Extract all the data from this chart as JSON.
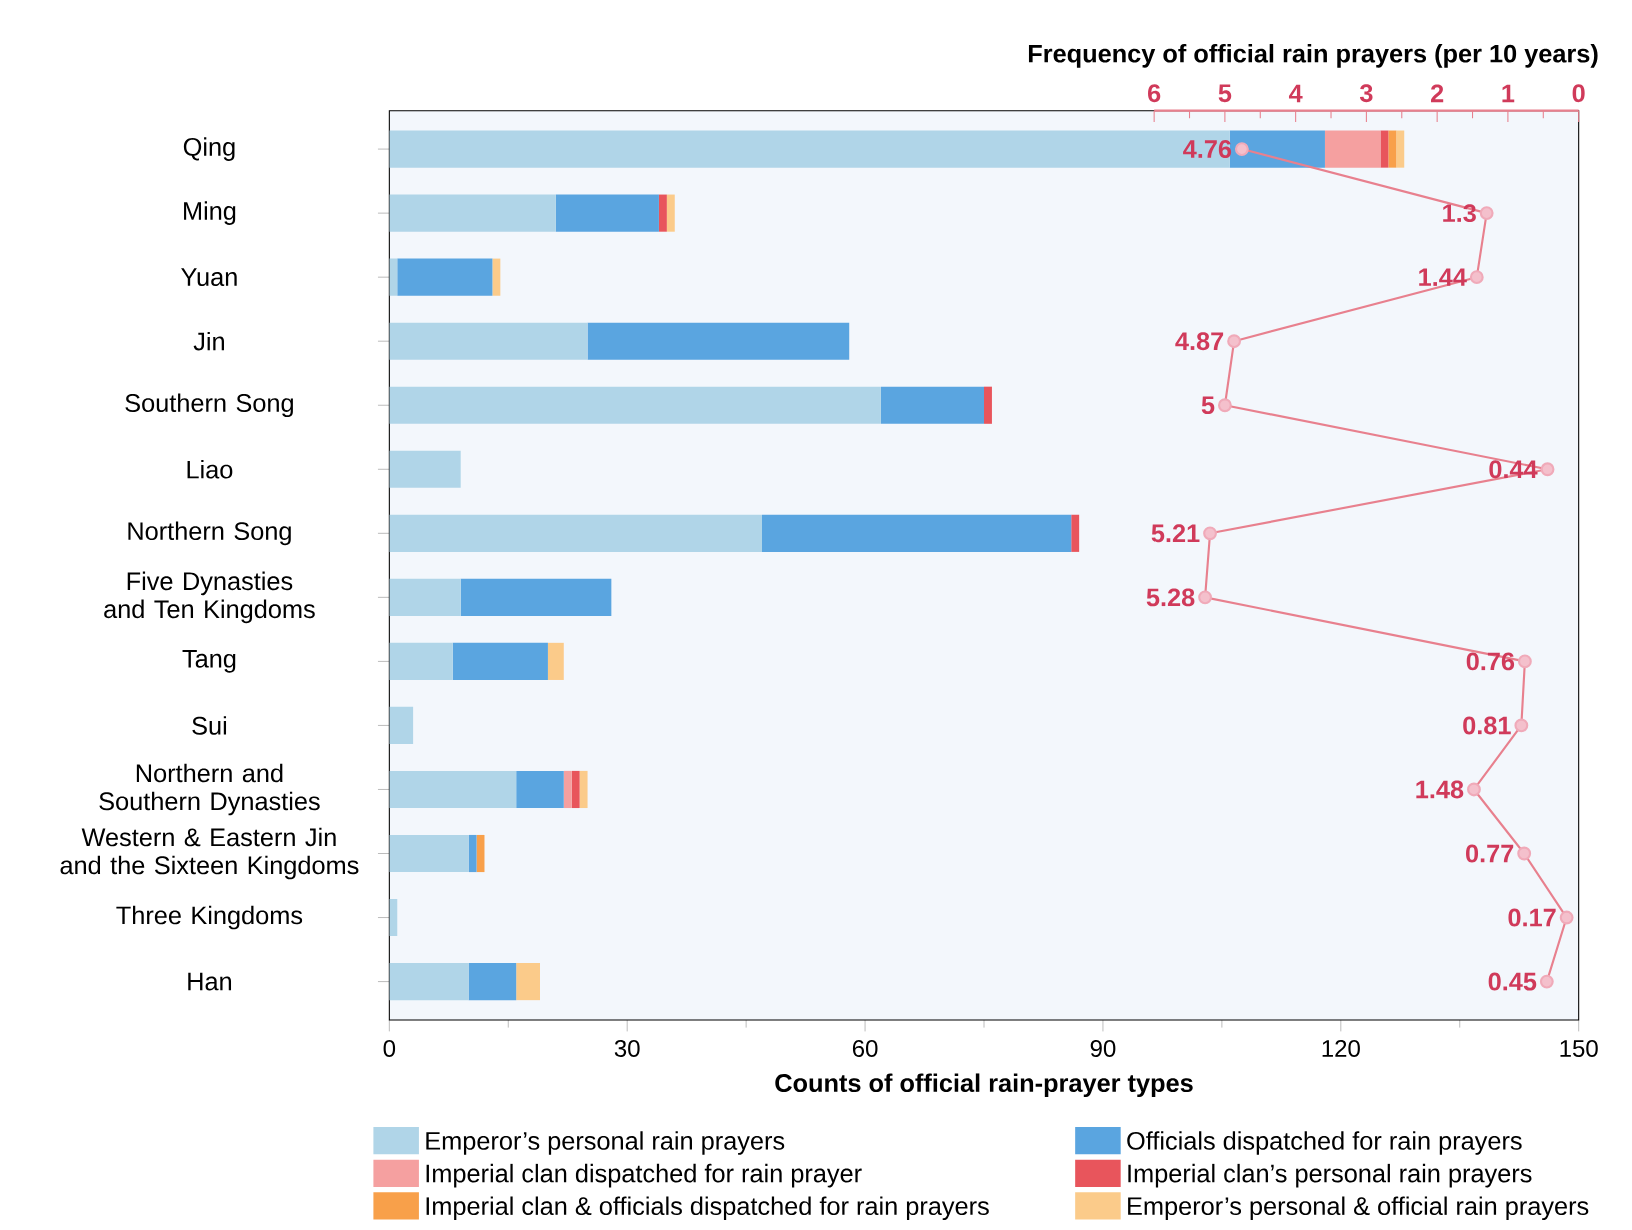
{
  "chart_data": {
    "type": "bar",
    "orientation": "horizontal",
    "stacked": true,
    "categories": [
      "Qing",
      "Ming",
      "Yuan",
      "Jin",
      "Southern Song",
      "Liao",
      "Northern Song",
      "Five Dynasties and Ten Kingdoms",
      "Tang",
      "Sui",
      "Northern and Southern Dynasties",
      "Western & Eastern Jin and the Sixteen Kingdoms",
      "Three Kingdoms",
      "Han"
    ],
    "xlabel": "Counts of official rain-prayer types",
    "x2label": "Frequency of official rain prayers (per 10 years)",
    "xlim": [
      0,
      150
    ],
    "xticks": [
      0,
      30,
      60,
      90,
      120,
      150
    ],
    "x2lim": [
      6,
      0
    ],
    "x2ticks": [
      6,
      5,
      4,
      3,
      2,
      1,
      0
    ],
    "legend": "bottom",
    "series": [
      {
        "name": "Emperor’s personal rain prayers",
        "color": "#b0d5e8",
        "values": [
          106,
          21,
          1,
          25,
          62,
          9,
          47,
          9,
          8,
          3,
          16,
          10,
          1,
          10
        ]
      },
      {
        "name": "Officials dispatched for rain prayers",
        "color": "#5aa5e0",
        "values": [
          12,
          13,
          12,
          33,
          13,
          0,
          39,
          19,
          12,
          0,
          6,
          1,
          0,
          6
        ]
      },
      {
        "name": "Imperial clan dispatched for rain prayer",
        "color": "#f5a0a0",
        "values": [
          7,
          0,
          0,
          0,
          0,
          0,
          0,
          0,
          0,
          0,
          1,
          0,
          0,
          0
        ]
      },
      {
        "name": "Imperial clan’s personal rain prayers",
        "color": "#e8555c",
        "values": [
          1,
          1,
          0,
          0,
          1,
          0,
          1,
          0,
          0,
          0,
          1,
          0,
          0,
          0
        ]
      },
      {
        "name": "Imperial clan & officials dispatched for rain prayers",
        "color": "#f8a04a",
        "values": [
          1,
          0,
          0,
          0,
          0,
          0,
          0,
          0,
          0,
          0,
          0,
          1,
          0,
          0
        ]
      },
      {
        "name": "Emperor’s personal & official rain prayers",
        "color": "#fbcb8a",
        "values": [
          1,
          1,
          1,
          0,
          0,
          0,
          0,
          0,
          2,
          0,
          1,
          0,
          0,
          3
        ]
      },
      {
        "type": "line",
        "axis": "x2",
        "color": "#e8808e",
        "marker": "circle",
        "line_style": "solid",
        "values": [
          4.76,
          1.3,
          1.44,
          4.87,
          5,
          0.44,
          5.21,
          5.28,
          0.76,
          0.81,
          1.48,
          0.77,
          0.17,
          0.45
        ],
        "value_labels": [
          "4.76",
          "1.3",
          "1.44",
          "4.87",
          "5",
          "0.44",
          "5.21",
          "5.28",
          "0.76",
          "0.81",
          "1.48",
          "0.77",
          "0.17",
          "0.45"
        ]
      }
    ]
  }
}
